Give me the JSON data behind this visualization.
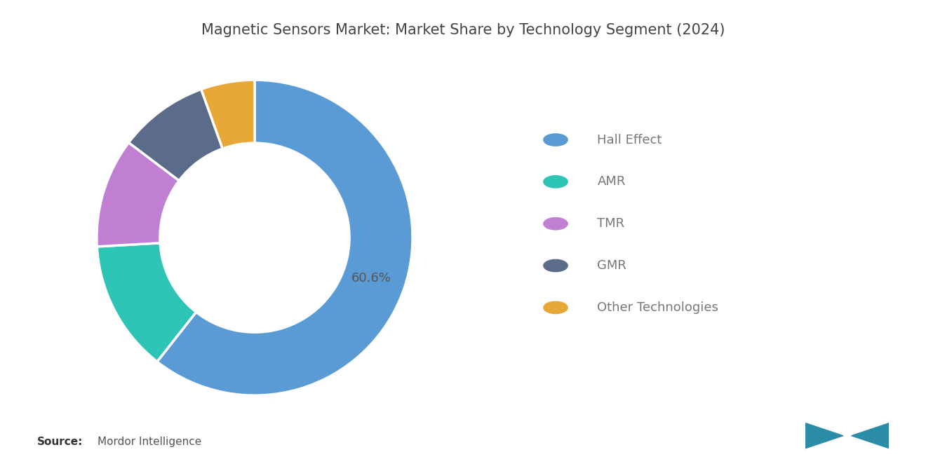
{
  "title": "Magnetic Sensors Market: Market Share by Technology Segment (2024)",
  "segments": [
    "Hall Effect",
    "AMR",
    "TMR",
    "GMR",
    "Other Technologies"
  ],
  "values": [
    60.6,
    13.5,
    11.2,
    9.2,
    5.5
  ],
  "colors": [
    "#5B9BD5",
    "#2EC4B6",
    "#C17FD4",
    "#5B6B8A",
    "#E8A838"
  ],
  "label_text": "60.6%",
  "source_bold": "Source:",
  "source_text": "Mordor Intelligence",
  "background_color": "#ffffff",
  "title_fontsize": 15,
  "title_color": "#444444",
  "legend_text_color": "#777777",
  "label_color": "#555555",
  "label_fontsize": 13,
  "donut_width": 0.4,
  "startangle": 90,
  "logo_color": "#2B8CA8"
}
